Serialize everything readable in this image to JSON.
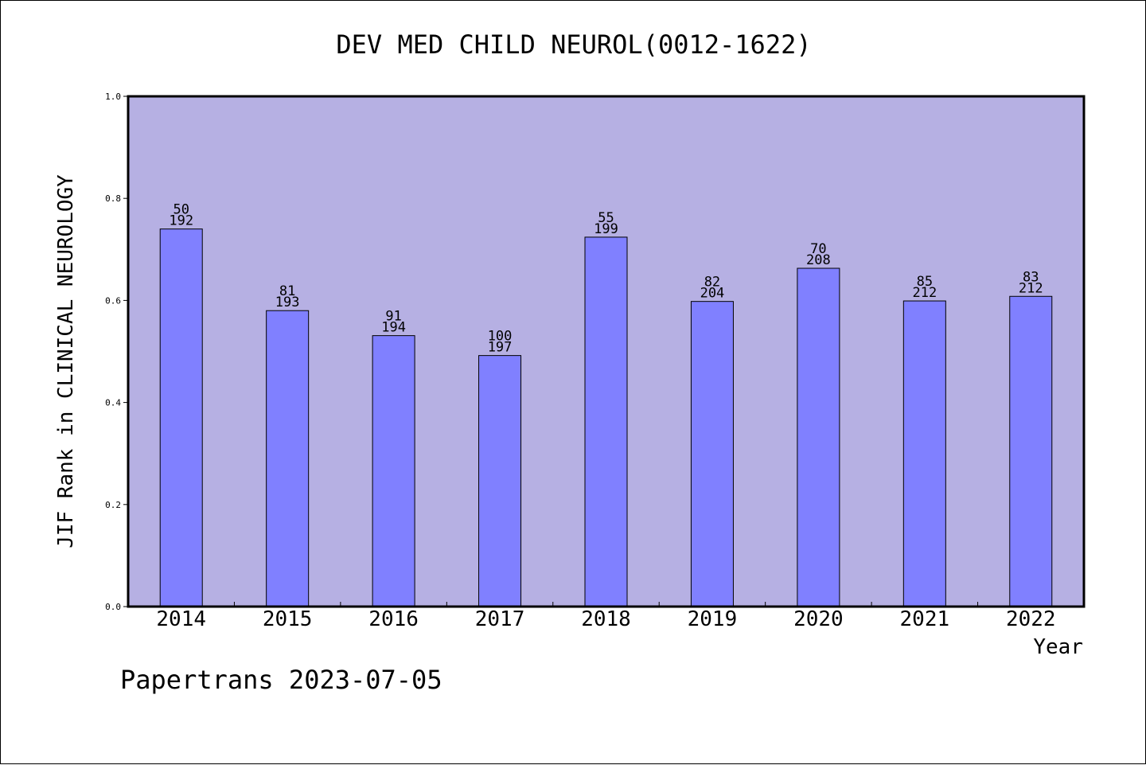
{
  "chart_data": {
    "type": "bar",
    "title": "DEV MED CHILD NEUROL(0012-1622)",
    "xlabel": "Year",
    "ylabel": "JIF Rank in CLINICAL NEUROLOGY",
    "ylim": [
      0,
      1
    ],
    "yticks": [
      "0.0",
      "0.2",
      "0.4",
      "0.6",
      "0.8",
      "1.0"
    ],
    "categories": [
      "2014",
      "2015",
      "2016",
      "2017",
      "2018",
      "2019",
      "2020",
      "2021",
      "2022"
    ],
    "values": [
      0.74,
      0.58,
      0.531,
      0.492,
      0.724,
      0.598,
      0.663,
      0.599,
      0.608
    ],
    "rank_labels": [
      "50",
      "81",
      "91",
      "100",
      "55",
      "82",
      "70",
      "85",
      "83"
    ],
    "total_labels": [
      "192",
      "193",
      "194",
      "197",
      "199",
      "204",
      "208",
      "212",
      "212"
    ],
    "grid": false,
    "legend": "none",
    "colors": {
      "plot_background": "#b6b0e3",
      "bar_fill": "#8080ff",
      "bar_stroke": "#000000"
    }
  },
  "footer": {
    "source": "Papertrans 2023-07-05"
  }
}
